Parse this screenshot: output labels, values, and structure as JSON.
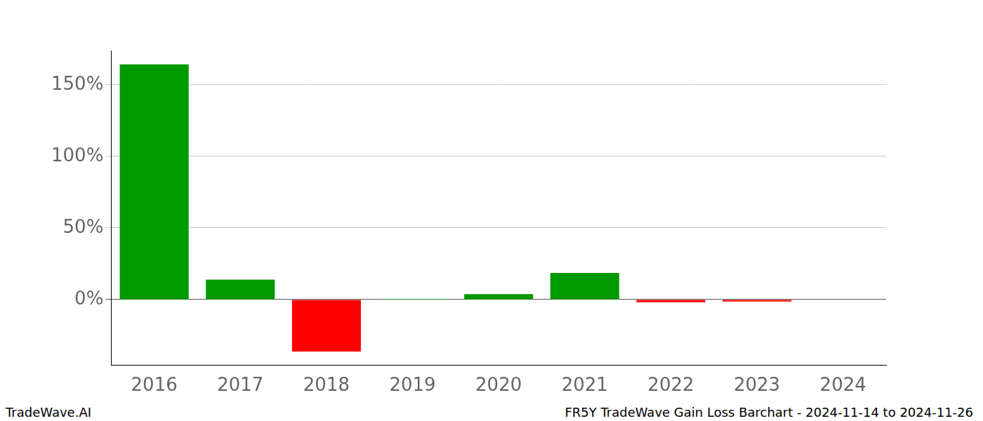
{
  "chart_data": {
    "type": "bar",
    "title": "FR5Y TradeWave Gain Loss Barchart - 2024-11-14 to 2024-11-26",
    "annotations": [
      "TradeWave.AI"
    ],
    "categories": [
      "2016",
      "2017",
      "2018",
      "2019",
      "2020",
      "2021",
      "2022",
      "2023",
      "2024"
    ],
    "values": [
      164.3,
      13.9,
      -36.3,
      0.5,
      3.8,
      18.6,
      -1.9,
      -1.4,
      0
    ],
    "colors": [
      "#009900",
      "#009900",
      "#ff0000",
      "#009900",
      "#009900",
      "#009900",
      "#ff0000",
      "#ff0000",
      "#009900"
    ],
    "ylim": [
      -46,
      174
    ],
    "yticks": [
      {
        "value": 0,
        "label": "0%"
      },
      {
        "value": 50,
        "label": "50%"
      },
      {
        "value": 100,
        "label": "100%"
      },
      {
        "value": 150,
        "label": "150%"
      }
    ],
    "grid": true
  }
}
